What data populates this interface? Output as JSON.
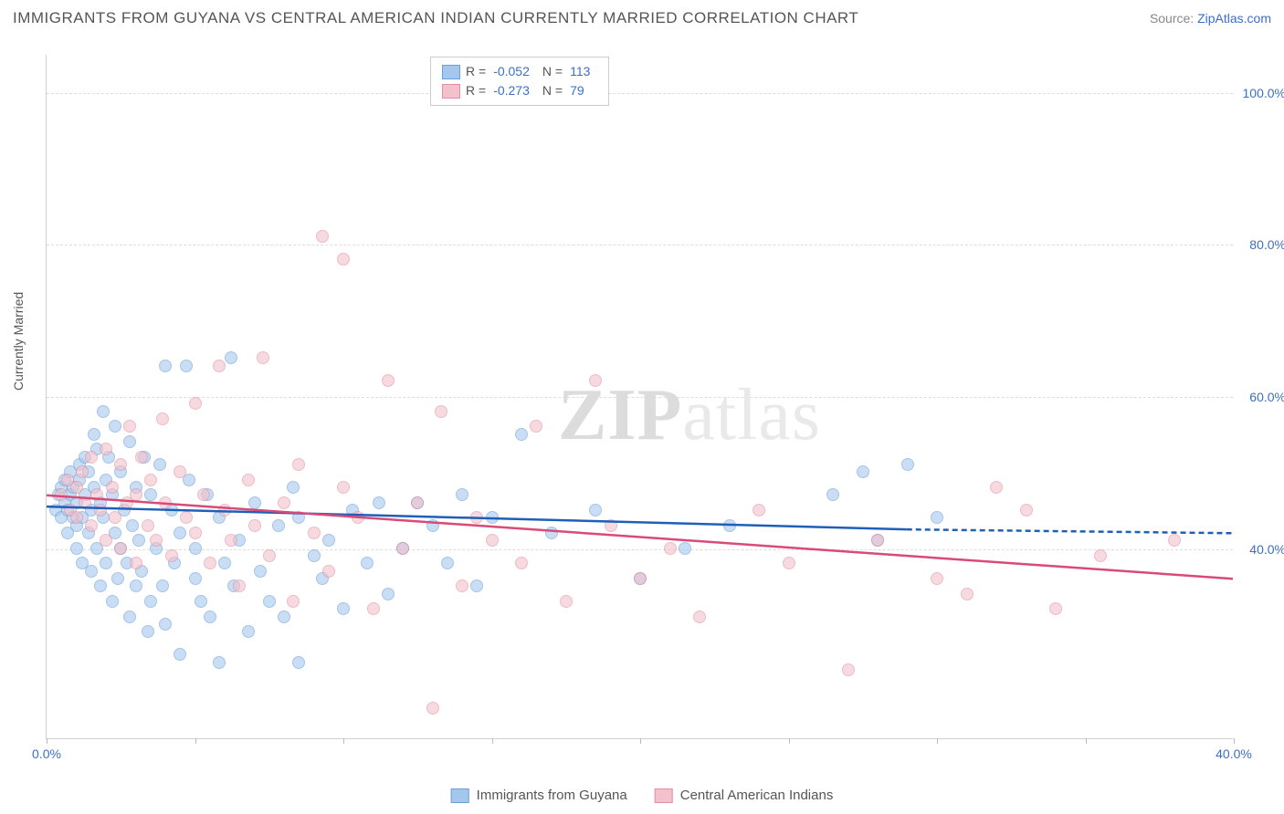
{
  "title": "IMMIGRANTS FROM GUYANA VS CENTRAL AMERICAN INDIAN CURRENTLY MARRIED CORRELATION CHART",
  "source_prefix": "Source: ",
  "source_link_text": "ZipAtlas.com",
  "watermark_zip": "ZIP",
  "watermark_atlas": "atlas",
  "chart": {
    "type": "scatter",
    "y_label": "Currently Married",
    "xlim": [
      0,
      40
    ],
    "ylim": [
      15,
      105
    ],
    "x_ticks": [
      0,
      5,
      10,
      15,
      20,
      25,
      30,
      35,
      40
    ],
    "x_tick_labels": {
      "0": "0.0%",
      "40": "40.0%"
    },
    "y_ticks": [
      40,
      60,
      80,
      100
    ],
    "y_tick_labels": {
      "40": "40.0%",
      "60": "60.0%",
      "80": "80.0%",
      "100": "100.0%"
    },
    "grid_color": "#dddddd",
    "axis_color": "#d0d0d0",
    "tick_label_color": "#3b6fc9",
    "background_color": "#ffffff",
    "series": [
      {
        "name_key": "Immigrants from Guyana",
        "color_fill": "#a6c7ed",
        "color_stroke": "#6a9fd8",
        "trend_color": "#1f5fb8",
        "r": "-0.052",
        "n": "113",
        "trend_y_at_x0": 45.5,
        "trend_y_at_x29": 42.5,
        "trend_dash_to_x": 40,
        "trend_dash_y": 42.0,
        "points": [
          [
            0.3,
            45
          ],
          [
            0.4,
            47
          ],
          [
            0.5,
            44
          ],
          [
            0.5,
            48
          ],
          [
            0.6,
            46
          ],
          [
            0.6,
            49
          ],
          [
            0.7,
            42
          ],
          [
            0.7,
            45
          ],
          [
            0.8,
            47
          ],
          [
            0.8,
            50
          ],
          [
            0.9,
            44
          ],
          [
            0.9,
            48
          ],
          [
            1.0,
            40
          ],
          [
            1.0,
            43
          ],
          [
            1.0,
            46
          ],
          [
            1.1,
            49
          ],
          [
            1.1,
            51
          ],
          [
            1.2,
            38
          ],
          [
            1.2,
            44
          ],
          [
            1.3,
            47
          ],
          [
            1.3,
            52
          ],
          [
            1.4,
            42
          ],
          [
            1.4,
            50
          ],
          [
            1.5,
            37
          ],
          [
            1.5,
            45
          ],
          [
            1.6,
            48
          ],
          [
            1.6,
            55
          ],
          [
            1.7,
            40
          ],
          [
            1.7,
            53
          ],
          [
            1.8,
            35
          ],
          [
            1.8,
            46
          ],
          [
            1.9,
            44
          ],
          [
            1.9,
            58
          ],
          [
            2.0,
            38
          ],
          [
            2.0,
            49
          ],
          [
            2.1,
            52
          ],
          [
            2.2,
            33
          ],
          [
            2.2,
            47
          ],
          [
            2.3,
            42
          ],
          [
            2.3,
            56
          ],
          [
            2.4,
            36
          ],
          [
            2.5,
            40
          ],
          [
            2.5,
            50
          ],
          [
            2.6,
            45
          ],
          [
            2.7,
            38
          ],
          [
            2.8,
            31
          ],
          [
            2.8,
            54
          ],
          [
            2.9,
            43
          ],
          [
            3.0,
            48
          ],
          [
            3.0,
            35
          ],
          [
            3.1,
            41
          ],
          [
            3.2,
            37
          ],
          [
            3.3,
            52
          ],
          [
            3.4,
            29
          ],
          [
            3.5,
            47
          ],
          [
            3.5,
            33
          ],
          [
            3.7,
            40
          ],
          [
            3.8,
            51
          ],
          [
            3.9,
            35
          ],
          [
            4.0,
            64
          ],
          [
            4.0,
            30
          ],
          [
            4.2,
            45
          ],
          [
            4.3,
            38
          ],
          [
            4.5,
            42
          ],
          [
            4.5,
            26
          ],
          [
            4.7,
            64
          ],
          [
            4.8,
            49
          ],
          [
            5.0,
            36
          ],
          [
            5.0,
            40
          ],
          [
            5.2,
            33
          ],
          [
            5.4,
            47
          ],
          [
            5.5,
            31
          ],
          [
            5.8,
            44
          ],
          [
            5.8,
            25
          ],
          [
            6.0,
            38
          ],
          [
            6.2,
            65
          ],
          [
            6.3,
            35
          ],
          [
            6.5,
            41
          ],
          [
            6.8,
            29
          ],
          [
            7.0,
            46
          ],
          [
            7.2,
            37
          ],
          [
            7.5,
            33
          ],
          [
            7.8,
            43
          ],
          [
            8.0,
            31
          ],
          [
            8.3,
            48
          ],
          [
            8.5,
            44
          ],
          [
            8.5,
            25
          ],
          [
            9.0,
            39
          ],
          [
            9.3,
            36
          ],
          [
            9.5,
            41
          ],
          [
            10.0,
            32
          ],
          [
            10.3,
            45
          ],
          [
            10.8,
            38
          ],
          [
            11.2,
            46
          ],
          [
            11.5,
            34
          ],
          [
            12.0,
            40
          ],
          [
            12.5,
            46
          ],
          [
            13.0,
            43
          ],
          [
            13.5,
            38
          ],
          [
            14.0,
            47
          ],
          [
            14.5,
            35
          ],
          [
            15.0,
            44
          ],
          [
            16.0,
            55
          ],
          [
            17.0,
            42
          ],
          [
            18.5,
            45
          ],
          [
            20.0,
            36
          ],
          [
            21.5,
            40
          ],
          [
            23.0,
            43
          ],
          [
            26.5,
            47
          ],
          [
            27.5,
            50
          ],
          [
            28.0,
            41
          ],
          [
            29.0,
            51
          ],
          [
            30.0,
            44
          ]
        ]
      },
      {
        "name_key": "Central American Indians",
        "color_fill": "#f3c1cc",
        "color_stroke": "#e28fa2",
        "trend_color": "#d84a77",
        "r": "-0.273",
        "n": "79",
        "trend_y_at_x0": 47.0,
        "trend_y_at_x40": 36.0,
        "points": [
          [
            0.5,
            47
          ],
          [
            0.7,
            49
          ],
          [
            0.8,
            45
          ],
          [
            1.0,
            48
          ],
          [
            1.0,
            44
          ],
          [
            1.2,
            50
          ],
          [
            1.3,
            46
          ],
          [
            1.5,
            43
          ],
          [
            1.5,
            52
          ],
          [
            1.7,
            47
          ],
          [
            1.8,
            45
          ],
          [
            2.0,
            41
          ],
          [
            2.0,
            53
          ],
          [
            2.2,
            48
          ],
          [
            2.3,
            44
          ],
          [
            2.5,
            51
          ],
          [
            2.5,
            40
          ],
          [
            2.7,
            46
          ],
          [
            2.8,
            56
          ],
          [
            3.0,
            47
          ],
          [
            3.0,
            38
          ],
          [
            3.2,
            52
          ],
          [
            3.4,
            43
          ],
          [
            3.5,
            49
          ],
          [
            3.7,
            41
          ],
          [
            3.9,
            57
          ],
          [
            4.0,
            46
          ],
          [
            4.2,
            39
          ],
          [
            4.5,
            50
          ],
          [
            4.7,
            44
          ],
          [
            5.0,
            42
          ],
          [
            5.0,
            59
          ],
          [
            5.3,
            47
          ],
          [
            5.5,
            38
          ],
          [
            5.8,
            64
          ],
          [
            6.0,
            45
          ],
          [
            6.2,
            41
          ],
          [
            6.5,
            35
          ],
          [
            6.8,
            49
          ],
          [
            7.0,
            43
          ],
          [
            7.3,
            65
          ],
          [
            7.5,
            39
          ],
          [
            8.0,
            46
          ],
          [
            8.3,
            33
          ],
          [
            8.5,
            51
          ],
          [
            9.0,
            42
          ],
          [
            9.3,
            81
          ],
          [
            9.5,
            37
          ],
          [
            10.0,
            48
          ],
          [
            10.0,
            78
          ],
          [
            10.5,
            44
          ],
          [
            11.0,
            32
          ],
          [
            11.5,
            62
          ],
          [
            12.0,
            40
          ],
          [
            12.5,
            46
          ],
          [
            13.0,
            19
          ],
          [
            13.3,
            58
          ],
          [
            14.0,
            35
          ],
          [
            14.5,
            44
          ],
          [
            15.0,
            41
          ],
          [
            16.0,
            38
          ],
          [
            16.5,
            56
          ],
          [
            17.5,
            33
          ],
          [
            18.5,
            62
          ],
          [
            19.0,
            43
          ],
          [
            20.0,
            36
          ],
          [
            21.0,
            40
          ],
          [
            22.0,
            31
          ],
          [
            24.0,
            45
          ],
          [
            25.0,
            38
          ],
          [
            27.0,
            24
          ],
          [
            28.0,
            41
          ],
          [
            30.0,
            36
          ],
          [
            31.0,
            34
          ],
          [
            32.0,
            48
          ],
          [
            33.0,
            45
          ],
          [
            34.0,
            32
          ],
          [
            35.5,
            39
          ],
          [
            38.0,
            41
          ]
        ]
      }
    ]
  }
}
